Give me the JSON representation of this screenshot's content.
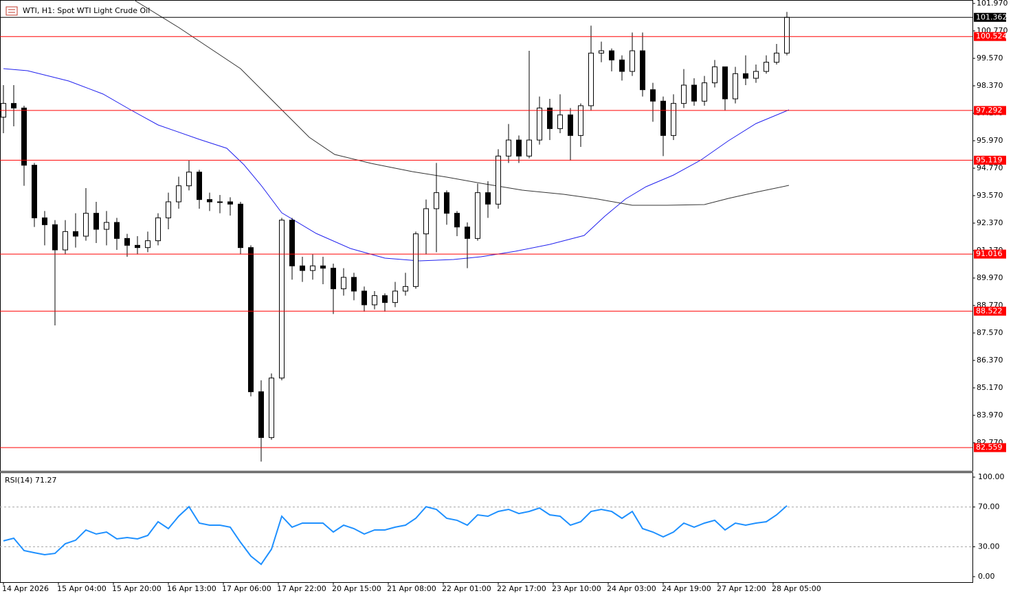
{
  "chart_data": [
    {
      "type": "candlestick",
      "title": "WTI, H1:  Spot WTI Light Crude Oil",
      "xlim": [
        -1,
        282
      ],
      "ylim": [
        81.54,
        102.12
      ],
      "yticks": [
        {
          "value": 101.97,
          "label": "101.970"
        },
        {
          "value": 100.77,
          "label": "100.770"
        },
        {
          "value": 99.57,
          "label": "99.570"
        },
        {
          "value": 98.37,
          "label": "98.370"
        },
        {
          "value": 97.17,
          "label": "97.170"
        },
        {
          "value": 95.97,
          "label": "95.970"
        },
        {
          "value": 94.77,
          "label": "94.770"
        },
        {
          "value": 93.57,
          "label": "93.570"
        },
        {
          "value": 92.37,
          "label": "92.370"
        },
        {
          "value": 91.17,
          "label": "91.170"
        },
        {
          "value": 89.97,
          "label": "89.970"
        },
        {
          "value": 88.77,
          "label": "88.770"
        },
        {
          "value": 87.57,
          "label": "87.570"
        },
        {
          "value": 86.37,
          "label": "86.370"
        },
        {
          "value": 85.17,
          "label": "85.170"
        },
        {
          "value": 83.97,
          "label": "83.970"
        },
        {
          "value": 82.77,
          "label": "82.770"
        }
      ],
      "x": [
        0,
        3,
        6,
        9,
        12,
        15,
        18,
        21,
        24,
        27,
        30,
        33,
        36,
        39,
        42,
        45,
        48,
        51,
        54,
        57,
        60,
        63,
        66,
        69,
        72,
        75,
        78,
        81,
        84,
        87,
        90,
        93,
        96,
        99,
        102,
        105,
        108,
        111,
        114,
        117,
        120,
        123,
        126,
        129,
        132,
        135,
        138,
        141,
        144,
        147,
        150,
        153,
        156,
        159,
        162,
        165,
        168,
        171,
        174,
        177,
        180,
        183,
        186,
        189,
        192,
        195,
        198,
        201,
        204,
        207,
        210,
        213,
        216,
        219,
        222,
        225,
        228
      ],
      "open": [
        97.0,
        97.6,
        97.4,
        94.9,
        92.6,
        92.3,
        91.2,
        92.0,
        91.8,
        92.8,
        92.1,
        92.4,
        91.7,
        91.4,
        91.3,
        91.6,
        92.6,
        93.3,
        94.0,
        94.6,
        93.4,
        93.3,
        93.3,
        93.2,
        91.3,
        85.0,
        83.0,
        85.6,
        92.5,
        90.5,
        90.3,
        90.5,
        90.4,
        89.5,
        90.0,
        89.4,
        88.8,
        89.2,
        88.9,
        89.4,
        89.6,
        91.9,
        93.0,
        93.7,
        92.8,
        92.2,
        91.7,
        93.7,
        93.2,
        95.3,
        96.0,
        95.3,
        96.0,
        97.4,
        96.5,
        97.1,
        96.2,
        97.5,
        99.8,
        99.9,
        99.5,
        99.0,
        99.9,
        98.2,
        97.7,
        96.2,
        97.6,
        98.4,
        97.7,
        98.5,
        99.2,
        97.8,
        98.9,
        98.7,
        99.0,
        99.4,
        99.8
      ],
      "high": [
        98.4,
        98.4,
        97.5,
        95.0,
        92.9,
        92.5,
        92.5,
        92.8,
        93.9,
        93.3,
        92.9,
        92.6,
        91.9,
        91.8,
        92.0,
        92.8,
        93.7,
        94.4,
        95.1,
        94.7,
        93.7,
        93.6,
        93.5,
        93.3,
        91.4,
        85.5,
        85.8,
        92.6,
        92.6,
        90.9,
        91.0,
        90.9,
        90.6,
        90.4,
        90.2,
        89.6,
        89.4,
        89.3,
        89.8,
        90.2,
        92.0,
        93.4,
        95.0,
        93.8,
        92.9,
        92.4,
        94.1,
        94.2,
        95.6,
        96.7,
        96.2,
        99.9,
        97.9,
        97.8,
        98.0,
        97.4,
        97.6,
        101.0,
        100.3,
        100.0,
        99.7,
        100.7,
        100.7,
        98.5,
        97.9,
        98.0,
        99.1,
        98.7,
        98.8,
        99.5,
        99.2,
        99.2,
        99.7,
        99.3,
        99.7,
        100.2,
        101.6
      ],
      "low": [
        96.3,
        96.6,
        94.0,
        92.2,
        91.4,
        87.9,
        91.0,
        91.3,
        91.6,
        91.5,
        91.4,
        91.2,
        90.9,
        91.0,
        91.1,
        91.4,
        92.1,
        93.0,
        93.8,
        93.0,
        92.9,
        92.8,
        92.7,
        91.0,
        84.8,
        81.95,
        82.9,
        85.5,
        89.9,
        89.8,
        89.9,
        89.7,
        88.4,
        89.2,
        89.0,
        88.5,
        88.6,
        88.5,
        88.7,
        89.2,
        89.5,
        91.0,
        91.1,
        92.3,
        91.8,
        90.4,
        91.6,
        92.6,
        93.0,
        95.0,
        95.0,
        95.2,
        95.8,
        96.0,
        96.3,
        95.1,
        95.7,
        97.3,
        99.4,
        99.0,
        98.6,
        98.8,
        97.9,
        96.8,
        95.3,
        96.0,
        97.4,
        97.5,
        97.5,
        98.3,
        97.3,
        97.6,
        98.4,
        98.5,
        98.9,
        99.3,
        99.7
      ],
      "close": [
        97.6,
        97.4,
        94.9,
        92.6,
        92.3,
        91.2,
        92.0,
        91.8,
        92.8,
        92.1,
        92.4,
        91.7,
        91.4,
        91.3,
        91.6,
        92.6,
        93.3,
        94.0,
        94.6,
        93.4,
        93.3,
        93.3,
        93.2,
        91.3,
        85.0,
        83.0,
        85.6,
        92.5,
        90.5,
        90.3,
        90.5,
        90.4,
        89.5,
        90.0,
        89.4,
        88.8,
        89.2,
        88.9,
        89.4,
        89.6,
        91.9,
        93.0,
        93.7,
        92.8,
        92.2,
        91.7,
        93.7,
        93.2,
        95.3,
        96.0,
        95.3,
        96.0,
        97.4,
        96.5,
        97.1,
        96.2,
        97.5,
        99.8,
        99.9,
        99.5,
        99.0,
        99.9,
        98.2,
        97.7,
        96.2,
        97.6,
        98.4,
        97.7,
        98.5,
        99.2,
        97.8,
        98.9,
        98.7,
        99.0,
        99.4,
        99.8,
        101.362
      ],
      "lines": [
        {
          "color": "#2020ee",
          "x": [
            0,
            7,
            19,
            29,
            37,
            45,
            57,
            65,
            70,
            75,
            81,
            91,
            101,
            111,
            121,
            131,
            139,
            149,
            159,
            169,
            175,
            181,
            187,
            195,
            203,
            211,
            219,
            228.6
          ],
          "values": [
            99.12,
            99.03,
            98.58,
            98.01,
            97.32,
            96.66,
            96.03,
            95.64,
            94.92,
            94.02,
            92.82,
            91.92,
            91.26,
            90.84,
            90.72,
            90.78,
            90.9,
            91.14,
            91.44,
            91.83,
            92.67,
            93.42,
            93.96,
            94.47,
            95.13,
            95.97,
            96.72,
            97.32
          ]
        },
        {
          "color": "#333333",
          "x": [
            38,
            51,
            69,
            81,
            89,
            96.4,
            107,
            119,
            129,
            139,
            151,
            163,
            173,
            183,
            193,
            204,
            211,
            219,
            228.6
          ],
          "values": [
            102.12,
            100.92,
            99.12,
            97.32,
            96.12,
            95.37,
            94.98,
            94.62,
            94.38,
            94.11,
            93.81,
            93.63,
            93.42,
            93.15,
            93.15,
            93.18,
            93.45,
            93.72,
            94.02
          ]
        }
      ],
      "levels": [
        {
          "value": 101.362,
          "color": "#000000"
        },
        {
          "value": 100.524,
          "color": "#ff0000"
        },
        {
          "value": 97.292,
          "color": "#ff0000"
        },
        {
          "value": 95.119,
          "color": "#ff0000"
        },
        {
          "value": 91.016,
          "color": "#ff0000"
        },
        {
          "value": 88.522,
          "color": "#ff0000"
        },
        {
          "value": 82.559,
          "color": "#ff0000"
        }
      ]
    },
    {
      "type": "line",
      "label": "RSI(14) 71.27",
      "color": "#1e90ff",
      "xlim": [
        -1,
        282
      ],
      "ylim": [
        -5.52,
        104.83
      ],
      "yticks": [
        {
          "value": 100,
          "label": "100.00"
        },
        {
          "value": 70,
          "label": "70.00"
        },
        {
          "value": 30,
          "label": "30.00"
        },
        {
          "value": 0,
          "label": "0.00"
        }
      ],
      "dashed_levels": [
        70,
        30
      ],
      "xticks": [
        {
          "value": 0,
          "label": "14 Apr 2026"
        },
        {
          "value": 16,
          "label": "15 Apr 04:00"
        },
        {
          "value": 32,
          "label": "15 Apr 20:00"
        },
        {
          "value": 48,
          "label": "16 Apr 13:00"
        },
        {
          "value": 64,
          "label": "17 Apr 06:00"
        },
        {
          "value": 80,
          "label": "17 Apr 22:00"
        },
        {
          "value": 96,
          "label": "20 Apr 15:00"
        },
        {
          "value": 112,
          "label": "21 Apr 08:00"
        },
        {
          "value": 128,
          "label": "22 Apr 01:00"
        },
        {
          "value": 144,
          "label": "22 Apr 17:00"
        },
        {
          "value": 160,
          "label": "23 Apr 10:00"
        },
        {
          "value": 176,
          "label": "24 Apr 03:00"
        },
        {
          "value": 192,
          "label": "24 Apr 19:00"
        },
        {
          "value": 208,
          "label": "27 Apr 12:00"
        },
        {
          "value": 224,
          "label": "28 Apr 05:00"
        }
      ],
      "x": [
        0,
        3,
        6,
        9,
        12,
        15,
        18,
        21,
        24,
        27,
        30,
        33,
        36,
        39,
        42,
        45,
        48,
        51,
        54,
        57,
        60,
        63,
        66,
        69,
        72,
        75,
        78,
        81,
        84,
        87,
        90,
        93,
        96,
        99,
        102,
        105,
        108,
        111,
        114,
        117,
        120,
        123,
        126,
        129,
        132,
        135,
        138,
        141,
        144,
        147,
        150,
        153,
        156,
        159,
        162,
        165,
        168,
        171,
        174,
        177,
        180,
        183,
        186,
        189,
        192,
        195,
        198,
        201,
        204,
        207,
        210,
        213,
        216,
        219,
        222,
        225,
        228
      ],
      "values": [
        35.9,
        38.6,
        26.2,
        24.1,
        22.1,
        23.4,
        33.1,
        36.6,
        46.9,
        42.8,
        44.8,
        37.9,
        39.3,
        37.9,
        41.4,
        55.2,
        48.3,
        60.7,
        70.3,
        53.8,
        51.7,
        51.7,
        49.7,
        34.5,
        20.7,
        12.4,
        27.6,
        60.7,
        49.7,
        53.8,
        53.8,
        53.8,
        44.8,
        51.7,
        48.3,
        42.8,
        46.9,
        46.9,
        49.7,
        51.7,
        58.6,
        70.3,
        67.6,
        58.6,
        56.6,
        51.7,
        62.1,
        60.7,
        65.5,
        67.6,
        63.4,
        65.5,
        69.0,
        62.1,
        60.7,
        51.7,
        55.2,
        65.5,
        67.6,
        65.5,
        58.6,
        65.5,
        48.3,
        44.8,
        40.0,
        44.8,
        53.8,
        49.7,
        53.8,
        56.6,
        46.9,
        53.8,
        51.7,
        53.8,
        55.2,
        62.1,
        71.27
      ]
    }
  ]
}
